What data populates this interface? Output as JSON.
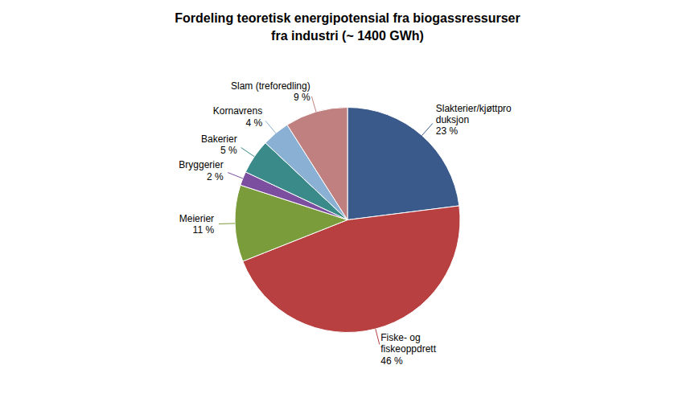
{
  "chart_data": {
    "type": "pie",
    "title": "Fordeling teoretisk energipotensial fra biogassressurser\nfra industri (~ 1400 GWh)",
    "categories": [
      "Slakterier/kjøttpro\nduksjon",
      "Fiske- og\nfiskeoppdrett",
      "Meierier",
      "Bryggerier",
      "Bakerier",
      "Kornavrens",
      "Slam (treforedling)"
    ],
    "values": [
      23,
      46,
      11,
      2,
      5,
      4,
      9
    ],
    "value_labels": [
      "23 %",
      "46 %",
      "11 %",
      "2 %",
      "5 %",
      "4 %",
      "9 %"
    ],
    "colors": [
      "#3A5A8C",
      "#B94040",
      "#7B9C3A",
      "#7B4EA0",
      "#3A8A8A",
      "#8AB0D4",
      "#C08080"
    ],
    "data_labels": true
  }
}
